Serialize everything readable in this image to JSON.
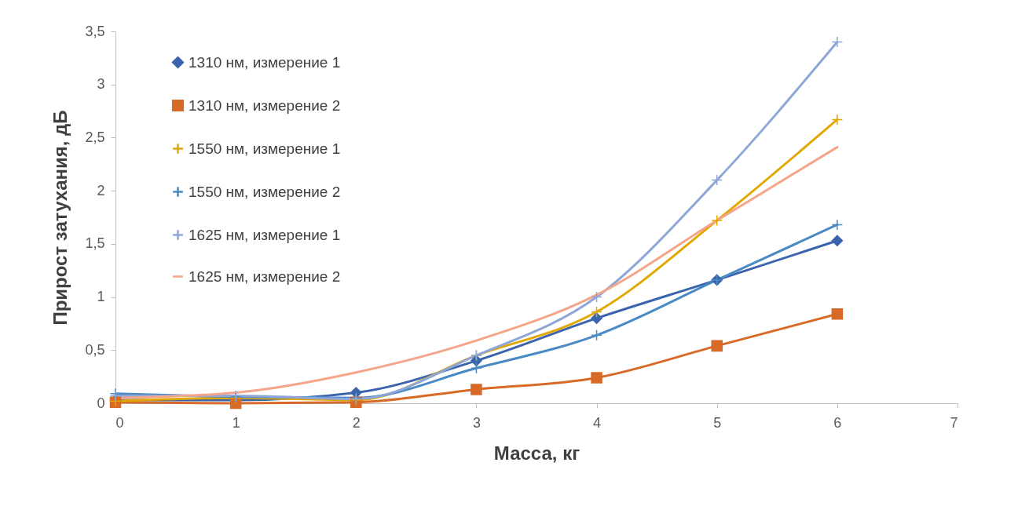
{
  "chart_data": {
    "type": "line",
    "xlabel": "Масса, кг",
    "ylabel": "Прирост затухания, дБ",
    "x": [
      0,
      1,
      2,
      3,
      4,
      5,
      6
    ],
    "xlim": [
      0,
      7
    ],
    "xticks": [
      0,
      1,
      2,
      3,
      4,
      5,
      6,
      7
    ],
    "ylim": [
      0,
      3.5
    ],
    "yticks": [
      0,
      {
        "value": 0.5,
        "label": "0,5"
      },
      1,
      {
        "value": 1.5,
        "label": "1,5"
      },
      2,
      {
        "value": 2.5,
        "label": "2,5"
      },
      3,
      {
        "value": 3.5,
        "label": "3,5"
      }
    ],
    "legend": "top left",
    "series": [
      {
        "name": "1310 нм, измерение 1",
        "color": "#3b64ad",
        "marker": "diamond",
        "values": [
          0.03,
          0.03,
          0.1,
          0.4,
          0.8,
          1.16,
          1.53
        ]
      },
      {
        "name": "1310 нм, измерение 2",
        "color": "#d86a28",
        "marker": "square",
        "values": [
          0.01,
          0,
          0.01,
          0.13,
          0.24,
          0.54,
          0.84
        ]
      },
      {
        "name": "1550 нм, измерение 1",
        "color": "#e0a800",
        "marker": "cross",
        "values": [
          0.02,
          0.05,
          0.03,
          0.45,
          0.86,
          1.72,
          2.67
        ]
      },
      {
        "name": "1550 нм, измерение 2",
        "color": "#4a8ac4",
        "marker": "cross",
        "values": [
          0.09,
          0.06,
          0.05,
          0.33,
          0.64,
          1.16,
          1.68
        ]
      },
      {
        "name": "1625 нм, измерение 1",
        "color": "#8fa7d8",
        "marker": "cross",
        "values": [
          0.07,
          0.07,
          0.04,
          0.45,
          1.0,
          2.1,
          3.4
        ]
      },
      {
        "name": "1625 нм, измерение 2",
        "color": "#f4a58a",
        "marker": "none",
        "values": [
          0.05,
          0.1,
          0.29,
          0.59,
          1.02,
          1.72,
          2.41
        ]
      }
    ]
  }
}
